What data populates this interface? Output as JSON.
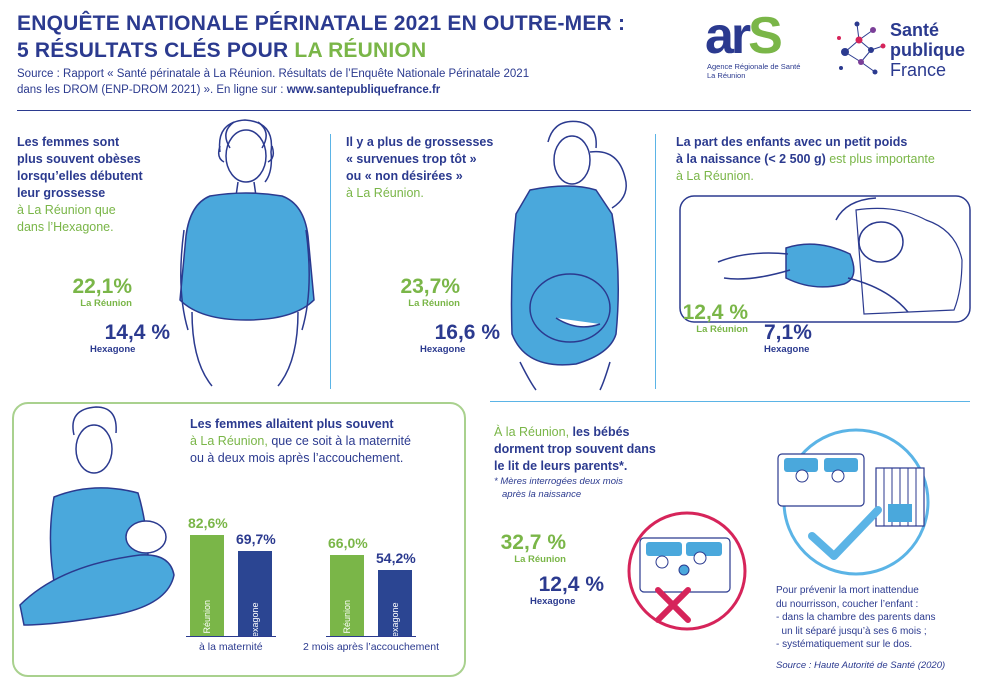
{
  "header": {
    "title_line1": "ENQUÊTE NATIONALE PÉRINATALE 2021 EN OUTRE-MER :",
    "title_line2_prefix": "5 RÉSULTATS CLÉS POUR ",
    "title_line2_highlight": "LA RÉUNION",
    "source_line1": "Source : Rapport « Santé périnatale à La Réunion. Résultats de l’Enquête Nationale Périnatale 2021",
    "source_line2_prefix": "dans les DROM (ENP-DROM 2021) ». En ligne sur : ",
    "source_url": "www.santepubliquefrance.fr"
  },
  "logos": {
    "ars_a": "ar",
    "ars_s": "S",
    "ars_sub1": "Agence Régionale de Santé",
    "ars_sub2": "La Réunion",
    "spf_line1": "Santé",
    "spf_line2": "publique",
    "spf_line3": "France"
  },
  "panel1": {
    "text_bold1": "Les femmes sont",
    "text_bold2": "plus souvent obèses",
    "text_bold3": "lorsqu’elles débutent",
    "text_bold4": "leur grossesse",
    "text_green1": "à La Réunion",
    "text_navy1": " que",
    "text_navy2": "dans l’Hexagone.",
    "stat_reunion_value": "22,1%",
    "stat_reunion_label": "La Réunion",
    "stat_hexagone_value": "14,4 %",
    "stat_hexagone_label": "Hexagone"
  },
  "panel2": {
    "text_bold1": "Il y a plus de grossesses",
    "text_bold2": "« survenues trop tôt »",
    "text_bold3": "ou « non désirées »",
    "text_green1": "à La Réunion.",
    "stat_reunion_value": "23,7%",
    "stat_reunion_label": "La Réunion",
    "stat_hexagone_value": "16,6 %",
    "stat_hexagone_label": "Hexagone"
  },
  "panel3": {
    "text_bold1": "La part des enfants avec un petit poids",
    "text_bold2": "à la naissance (< 2 500 g)",
    "text_green1": " est plus importante",
    "text_green2": "à La Réunion.",
    "stat_reunion_value": "12,4 %",
    "stat_reunion_label": "La Réunion",
    "stat_hexagone_value": "7,1%",
    "stat_hexagone_label": "Hexagone"
  },
  "panel4": {
    "text_bold1": "Les femmes allaitent plus souvent",
    "text_green1": "à La Réunion,",
    "text_navy1": " que ce soit à la maternité",
    "text_navy2": "ou à deux mois après l’accouchement."
  },
  "panel5": {
    "text_green1": "À la Réunion,",
    "text_bold1": " les bébés",
    "text_bold2": "dorment trop souvent dans",
    "text_bold3": "le lit de leurs parents*.",
    "note1": "* Mères interrogées deux mois",
    "note2": "après la naissance",
    "stat_reunion_value": "32,7 %",
    "stat_reunion_label": "La Réunion",
    "stat_hexagone_value": "12,4 %",
    "stat_hexagone_label": "Hexagone",
    "advice1": "Pour prévenir la mort inattendue",
    "advice2": "du nourrisson, coucher l’enfant :",
    "advice3": "- dans la chambre des parents dans",
    "advice4": "  un lit séparé jusqu’à ses 6 mois ;",
    "advice5": "- systématiquement sur le dos.",
    "advice_source": "Source : Haute Autorité de Santé (2020)"
  },
  "chart_data": {
    "type": "bar",
    "categories": [
      "à la maternité",
      "2 mois après l’accouchement"
    ],
    "series": [
      {
        "name": "La Réunion",
        "values": [
          82.6,
          66.0
        ],
        "labels": [
          "82,6%",
          "66,0%"
        ],
        "color": "#7ab648"
      },
      {
        "name": "Hexagone",
        "values": [
          69.7,
          54.2
        ],
        "labels": [
          "69,7%",
          "54,2%"
        ],
        "color": "#2b4592"
      }
    ],
    "ylim": [
      0,
      100
    ],
    "grid": false
  },
  "colors": {
    "navy": "#2b3a8f",
    "green": "#7ab648",
    "light_blue": "#5bb4e6",
    "shirt_blue": "#4aa8dc",
    "red_cross": "#d6245a"
  },
  "icons": [
    "woman-illustration",
    "pregnant-woman-illustration",
    "baby-illustration",
    "breastfeeding-illustration",
    "cosleeping-cross-icon",
    "separate-crib-check-icon"
  ]
}
